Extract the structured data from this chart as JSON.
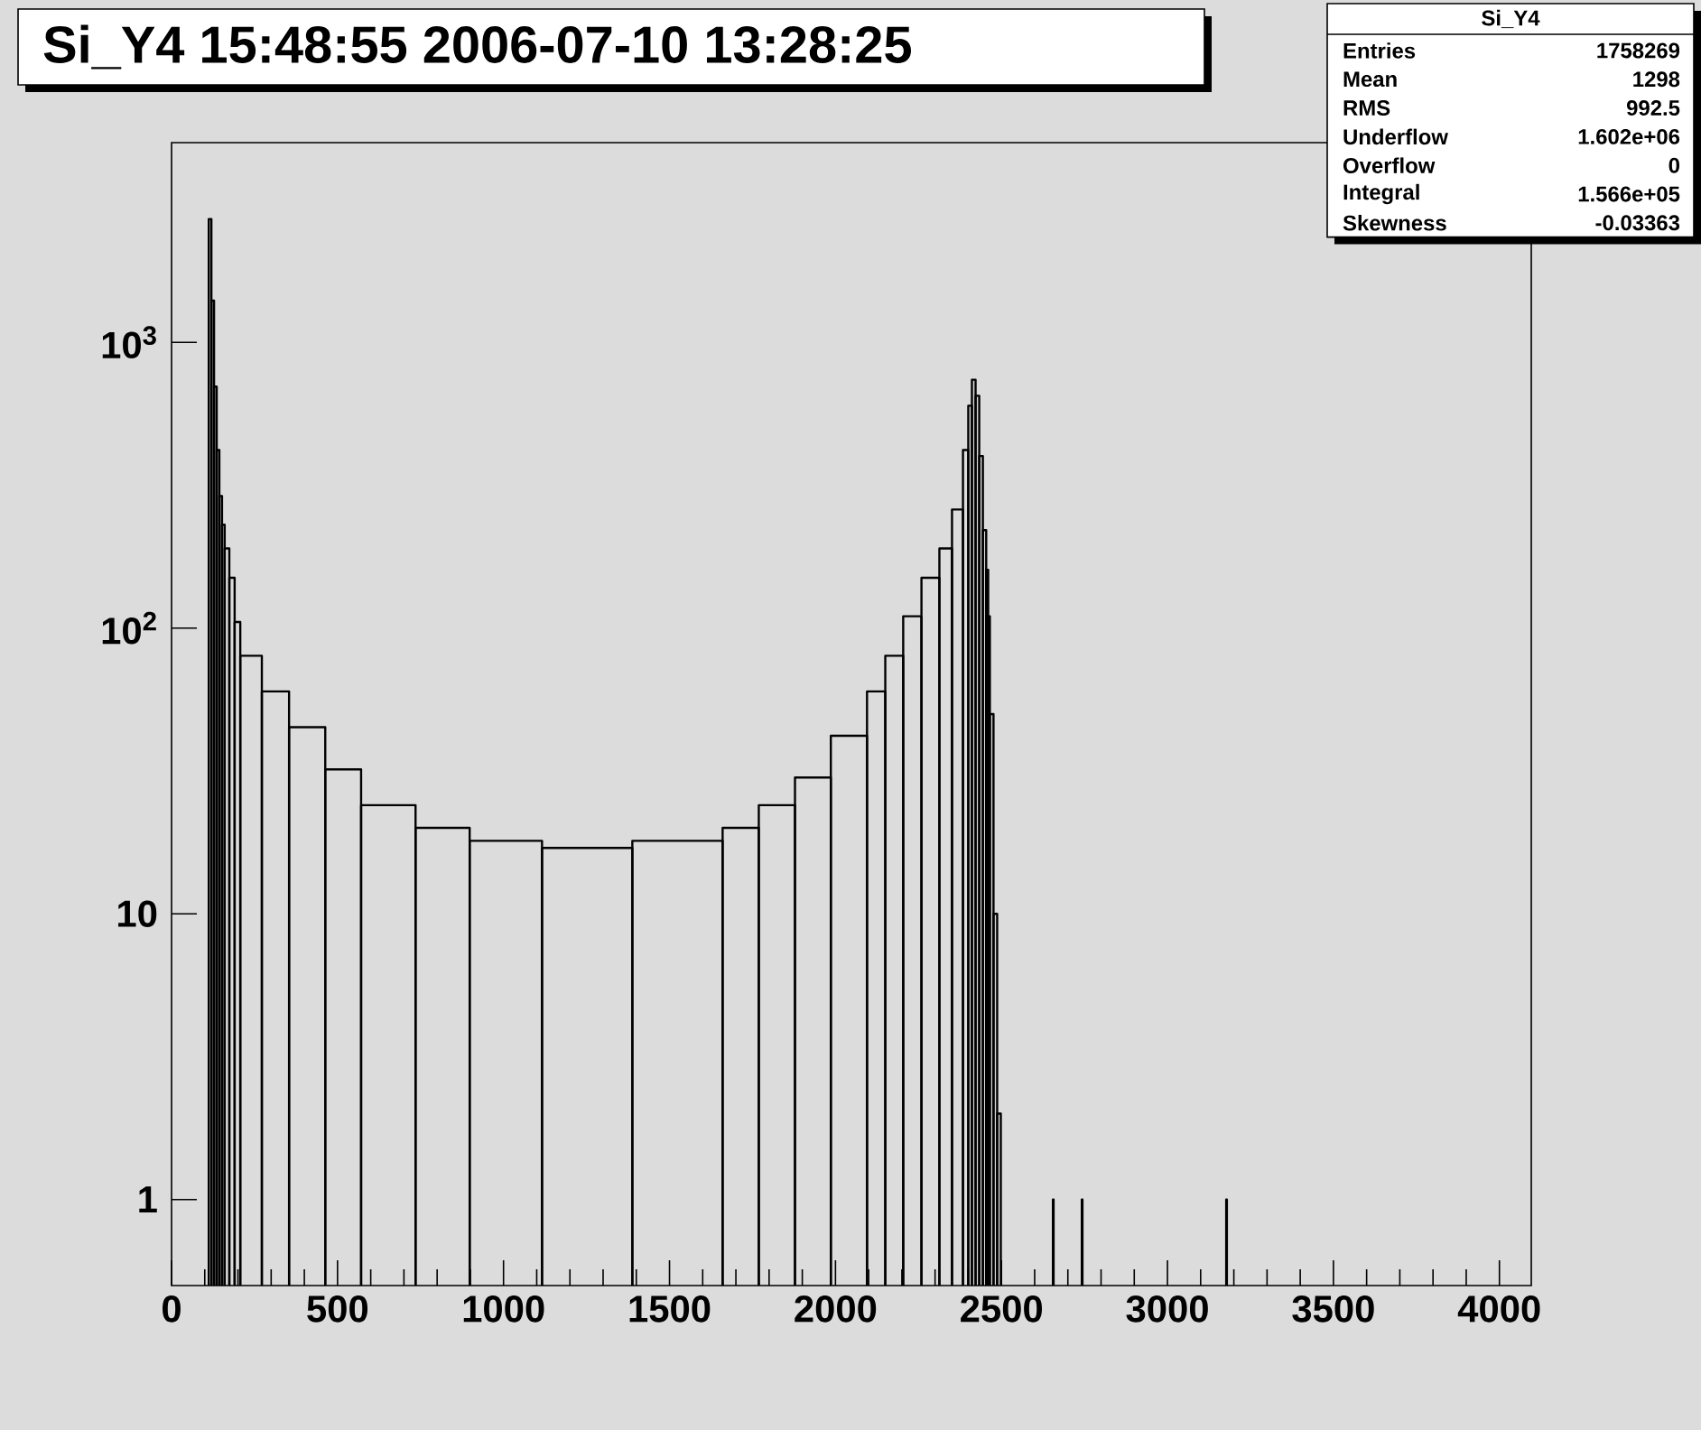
{
  "chart_data": {
    "type": "histogram",
    "title": "Si_Y4 15:48:55 2006-07-10 13:28:25",
    "bins": [
      112,
      120,
      128,
      136,
      144,
      152,
      160,
      174,
      190,
      207,
      272,
      354,
      463,
      571,
      735,
      898,
      1116,
      1388,
      1660,
      1769,
      1878,
      1986,
      2095,
      2150,
      2204,
      2259,
      2313,
      2351,
      2384,
      2400,
      2411,
      2422,
      2433,
      2444,
      2454,
      2460,
      2465,
      2476,
      2487,
      2498,
      2655,
      2657,
      2742,
      2744,
      3177,
      3179
    ],
    "values": [
      2700,
      1400,
      700,
      420,
      290,
      230,
      190,
      150,
      105,
      80,
      60,
      45,
      32,
      24,
      20,
      18,
      17,
      18,
      20,
      24,
      30,
      42,
      60,
      80,
      110,
      150,
      190,
      260,
      420,
      600,
      740,
      650,
      400,
      220,
      160,
      110,
      50,
      10,
      2,
      null,
      1,
      null,
      1,
      null,
      1
    ],
    "color": "#000000",
    "log": "y",
    "xlim": [
      0,
      4096
    ],
    "ylim": [
      0.5,
      5000
    ],
    "xticks": [
      0,
      500,
      1000,
      1500,
      2000,
      2500,
      3000,
      3500,
      4000
    ],
    "yticks": [
      1,
      10,
      {
        "value": 100,
        "label": "10$^{2}$"
      },
      {
        "value": 1000,
        "label": "10$^{3}$"
      }
    ],
    "annotations": [
      "Si_Y4",
      "Entries",
      "1758269",
      "Mean",
      "1298",
      "RMS",
      "992.5",
      "Underflow",
      "1.602e+06",
      "Overflow",
      "0",
      "Integral",
      "1.566e+05",
      "Skewness",
      "-0.03363"
    ]
  }
}
